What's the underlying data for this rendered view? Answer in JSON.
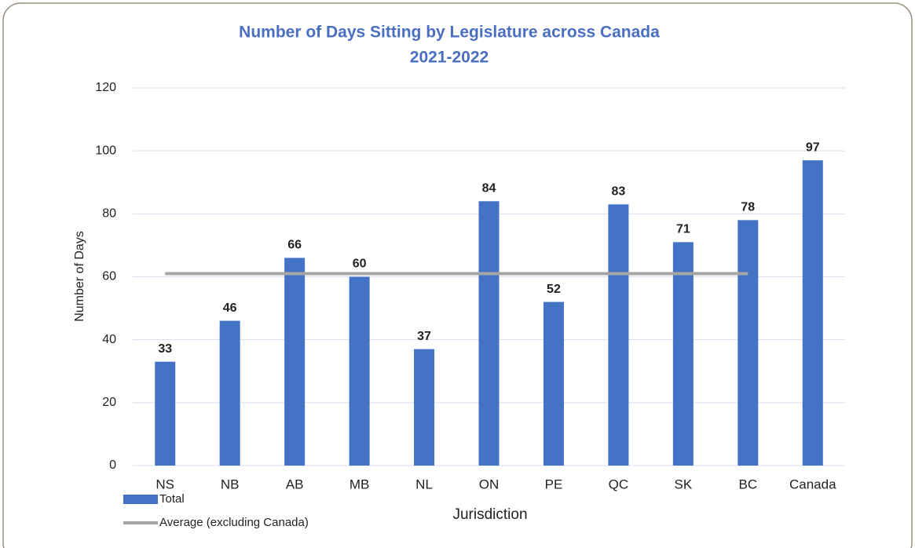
{
  "chart_data": {
    "type": "bar",
    "title": "Number of Days Sitting by Legislature across Canada",
    "subtitle": "2021-2022",
    "x_label": "Jurisdiction",
    "y_label": "Number of Days",
    "categories": [
      "NS",
      "NB",
      "AB",
      "MB",
      "NL",
      "ON",
      "PE",
      "QC",
      "SK",
      "BC",
      "Canada"
    ],
    "series": [
      {
        "name": "Total",
        "type": "bar",
        "color": "#4472c4",
        "values": [
          33,
          46,
          66,
          60,
          37,
          84,
          52,
          83,
          71,
          78,
          97
        ]
      },
      {
        "name": "Average (excluding Canada)",
        "type": "line",
        "color": "#a5a5a5",
        "values": [
          61,
          61,
          61,
          61,
          61,
          61,
          61,
          61,
          61,
          61,
          null
        ]
      }
    ],
    "ylim": [
      0,
      120
    ],
    "yticks": [
      0,
      20,
      40,
      60,
      80,
      100,
      120
    ],
    "grid": true,
    "legend": "bottom-left"
  }
}
